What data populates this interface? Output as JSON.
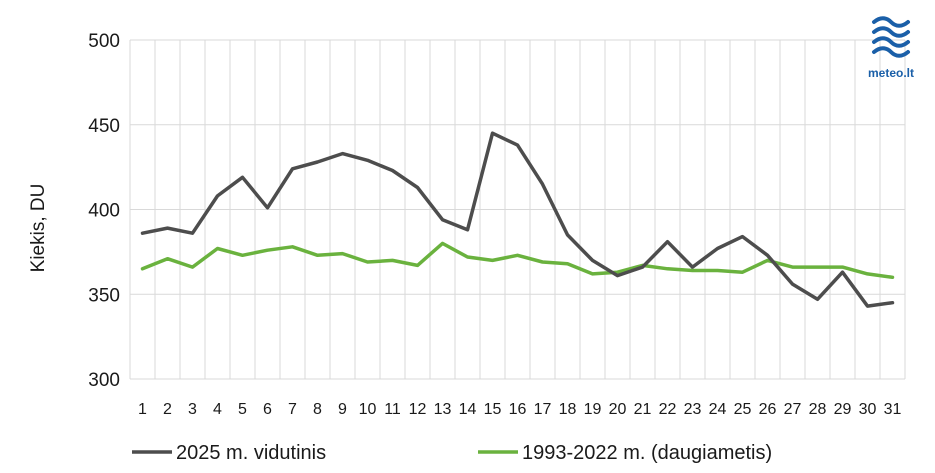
{
  "chart_data": {
    "type": "line",
    "ylabel": "Kiekis, DU",
    "xlabel": "",
    "ylim": [
      300,
      500
    ],
    "yticks": [
      300,
      350,
      400,
      450,
      500
    ],
    "grid": true,
    "legend_position": "bottom",
    "x": [
      "1",
      "2",
      "3",
      "4",
      "5",
      "6",
      "7",
      "8",
      "9",
      "10",
      "11",
      "12",
      "13",
      "14",
      "15",
      "16",
      "17",
      "18",
      "19",
      "20",
      "21",
      "22",
      "23",
      "24",
      "25",
      "26",
      "27",
      "28",
      "29",
      "30",
      "31"
    ],
    "series": [
      {
        "name": "2025 m. vidutinis",
        "color": "#4d4d4d",
        "values": [
          386,
          389,
          386,
          408,
          419,
          401,
          424,
          428,
          433,
          429,
          423,
          413,
          394,
          388,
          445,
          438,
          415,
          385,
          370,
          361,
          366,
          381,
          366,
          377,
          384,
          373,
          356,
          347,
          363,
          343,
          345
        ]
      },
      {
        "name": "1993-2022 m. (daugiametis)",
        "color": "#6ab23e",
        "values": [
          365,
          371,
          366,
          377,
          373,
          376,
          378,
          373,
          374,
          369,
          370,
          367,
          380,
          372,
          370,
          373,
          369,
          368,
          362,
          363,
          367,
          365,
          364,
          364,
          363,
          370,
          366,
          366,
          366,
          362,
          360
        ]
      }
    ]
  },
  "logo": {
    "text": "meteo.lt",
    "color": "#1a5fa8"
  }
}
